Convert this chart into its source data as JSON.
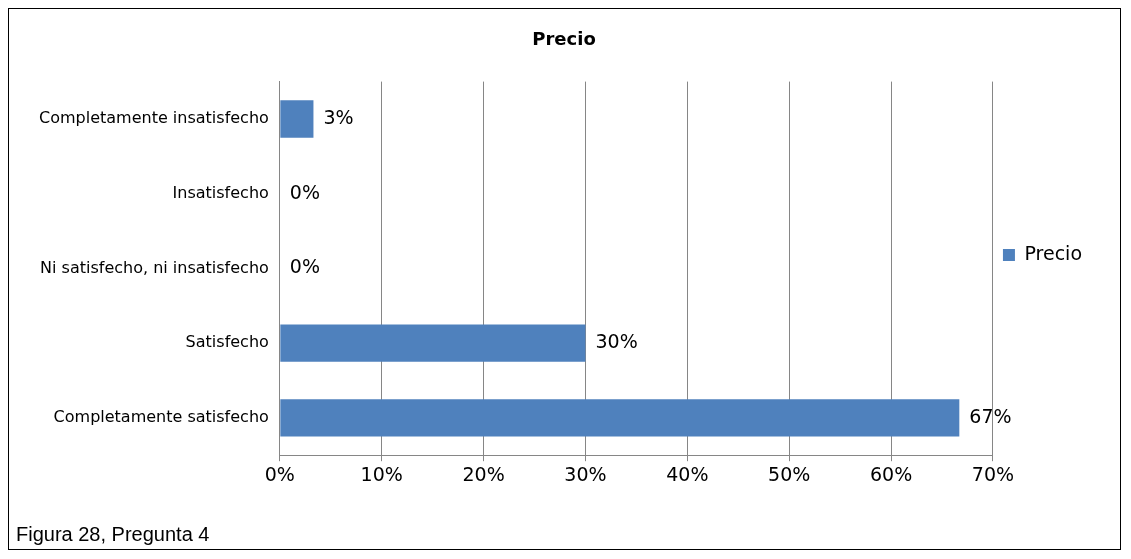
{
  "chart_data": {
    "type": "bar",
    "orientation": "horizontal",
    "title": "Precio",
    "categories": [
      "Completamente insatisfecho",
      "Insatisfecho",
      "Ni satisfecho, ni insatisfecho",
      "Satisfecho",
      "Completamente satisfecho"
    ],
    "series": [
      {
        "name": "Precio",
        "color": "#4f81bd",
        "values": [
          3.3,
          0,
          0,
          30,
          66.7
        ],
        "value_labels": [
          "3%",
          "0%",
          "0%",
          "30%",
          "67%"
        ]
      }
    ],
    "xlim": [
      0,
      70
    ],
    "xticks": [
      {
        "value": 0,
        "label": "0%"
      },
      {
        "value": 10,
        "label": "10%"
      },
      {
        "value": 20,
        "label": "20%"
      },
      {
        "value": 30,
        "label": "30%"
      },
      {
        "value": 40,
        "label": "40%"
      },
      {
        "value": 50,
        "label": "50%"
      },
      {
        "value": 60,
        "label": "60%"
      },
      {
        "value": 70,
        "label": "70%"
      }
    ],
    "grid": "x",
    "legend": "right",
    "annotations": [
      "Figura 28, Pregunta 4"
    ]
  }
}
